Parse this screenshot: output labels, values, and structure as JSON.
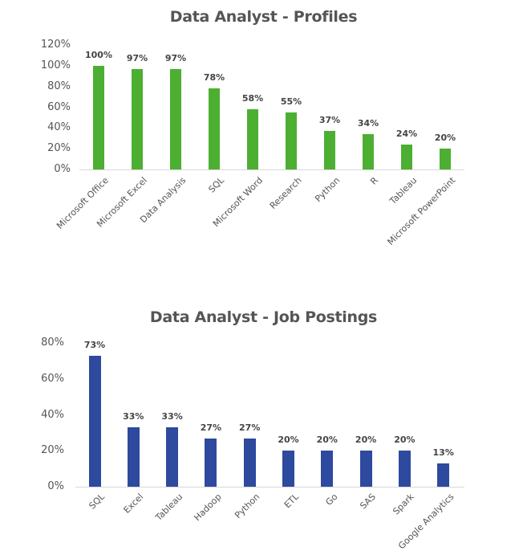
{
  "charts": [
    {
      "title": "Data Analyst - Profiles",
      "color": "#4caf32",
      "yticks": [
        "0%",
        "20%",
        "40%",
        "60%",
        "80%",
        "100%",
        "120%"
      ],
      "categories": [
        "Microsoft Office",
        "Microsoft Excel",
        "Data Analysis",
        "SQL",
        "Microsoft Word",
        "Research",
        "Python",
        "R",
        "Tableau",
        "Microsoft PowerPoint"
      ],
      "values": [
        100,
        97,
        97,
        78,
        58,
        55,
        37,
        34,
        24,
        20
      ],
      "labels": [
        "100%",
        "97%",
        "97%",
        "78%",
        "58%",
        "55%",
        "37%",
        "34%",
        "24%",
        "20%"
      ]
    },
    {
      "title": "Data Analyst - Job Postings",
      "color": "#2e4a9e",
      "yticks": [
        "0%",
        "20%",
        "40%",
        "60%",
        "80%"
      ],
      "categories": [
        "SQL",
        "Excel",
        "Tableau",
        "Hadoop",
        "Python",
        "ETL",
        "Go",
        "SAS",
        "Spark",
        "Google Analytics"
      ],
      "values": [
        73,
        33,
        33,
        27,
        27,
        20,
        20,
        20,
        20,
        13
      ],
      "labels": [
        "73%",
        "33%",
        "33%",
        "27%",
        "27%",
        "20%",
        "20%",
        "20%",
        "20%",
        "13%"
      ]
    }
  ],
  "chart_data": [
    {
      "type": "bar",
      "title": "Data Analyst - Profiles",
      "categories": [
        "Microsoft Office",
        "Microsoft Excel",
        "Data Analysis",
        "SQL",
        "Microsoft Word",
        "Research",
        "Python",
        "R",
        "Tableau",
        "Microsoft PowerPoint"
      ],
      "values": [
        100,
        97,
        97,
        78,
        58,
        55,
        37,
        34,
        24,
        20
      ],
      "data_labels": [
        "100%",
        "97%",
        "97%",
        "78%",
        "58%",
        "55%",
        "37%",
        "34%",
        "24%",
        "20%"
      ],
      "xlabel": "",
      "ylabel": "",
      "yticks": [
        "0%",
        "20%",
        "40%",
        "60%",
        "80%",
        "100%",
        "120%"
      ],
      "ylim": [
        0,
        120
      ],
      "grid": false,
      "legend": null,
      "color": "#4caf32"
    },
    {
      "type": "bar",
      "title": "Data Analyst - Job Postings",
      "categories": [
        "SQL",
        "Excel",
        "Tableau",
        "Hadoop",
        "Python",
        "ETL",
        "Go",
        "SAS",
        "Spark",
        "Google Analytics"
      ],
      "values": [
        73,
        33,
        33,
        27,
        27,
        20,
        20,
        20,
        20,
        13
      ],
      "data_labels": [
        "73%",
        "33%",
        "33%",
        "27%",
        "27%",
        "20%",
        "20%",
        "20%",
        "20%",
        "13%"
      ],
      "xlabel": "",
      "ylabel": "",
      "yticks": [
        "0%",
        "20%",
        "40%",
        "60%",
        "80%"
      ],
      "ylim": [
        0,
        80
      ],
      "grid": false,
      "legend": null,
      "color": "#2e4a9e"
    }
  ]
}
